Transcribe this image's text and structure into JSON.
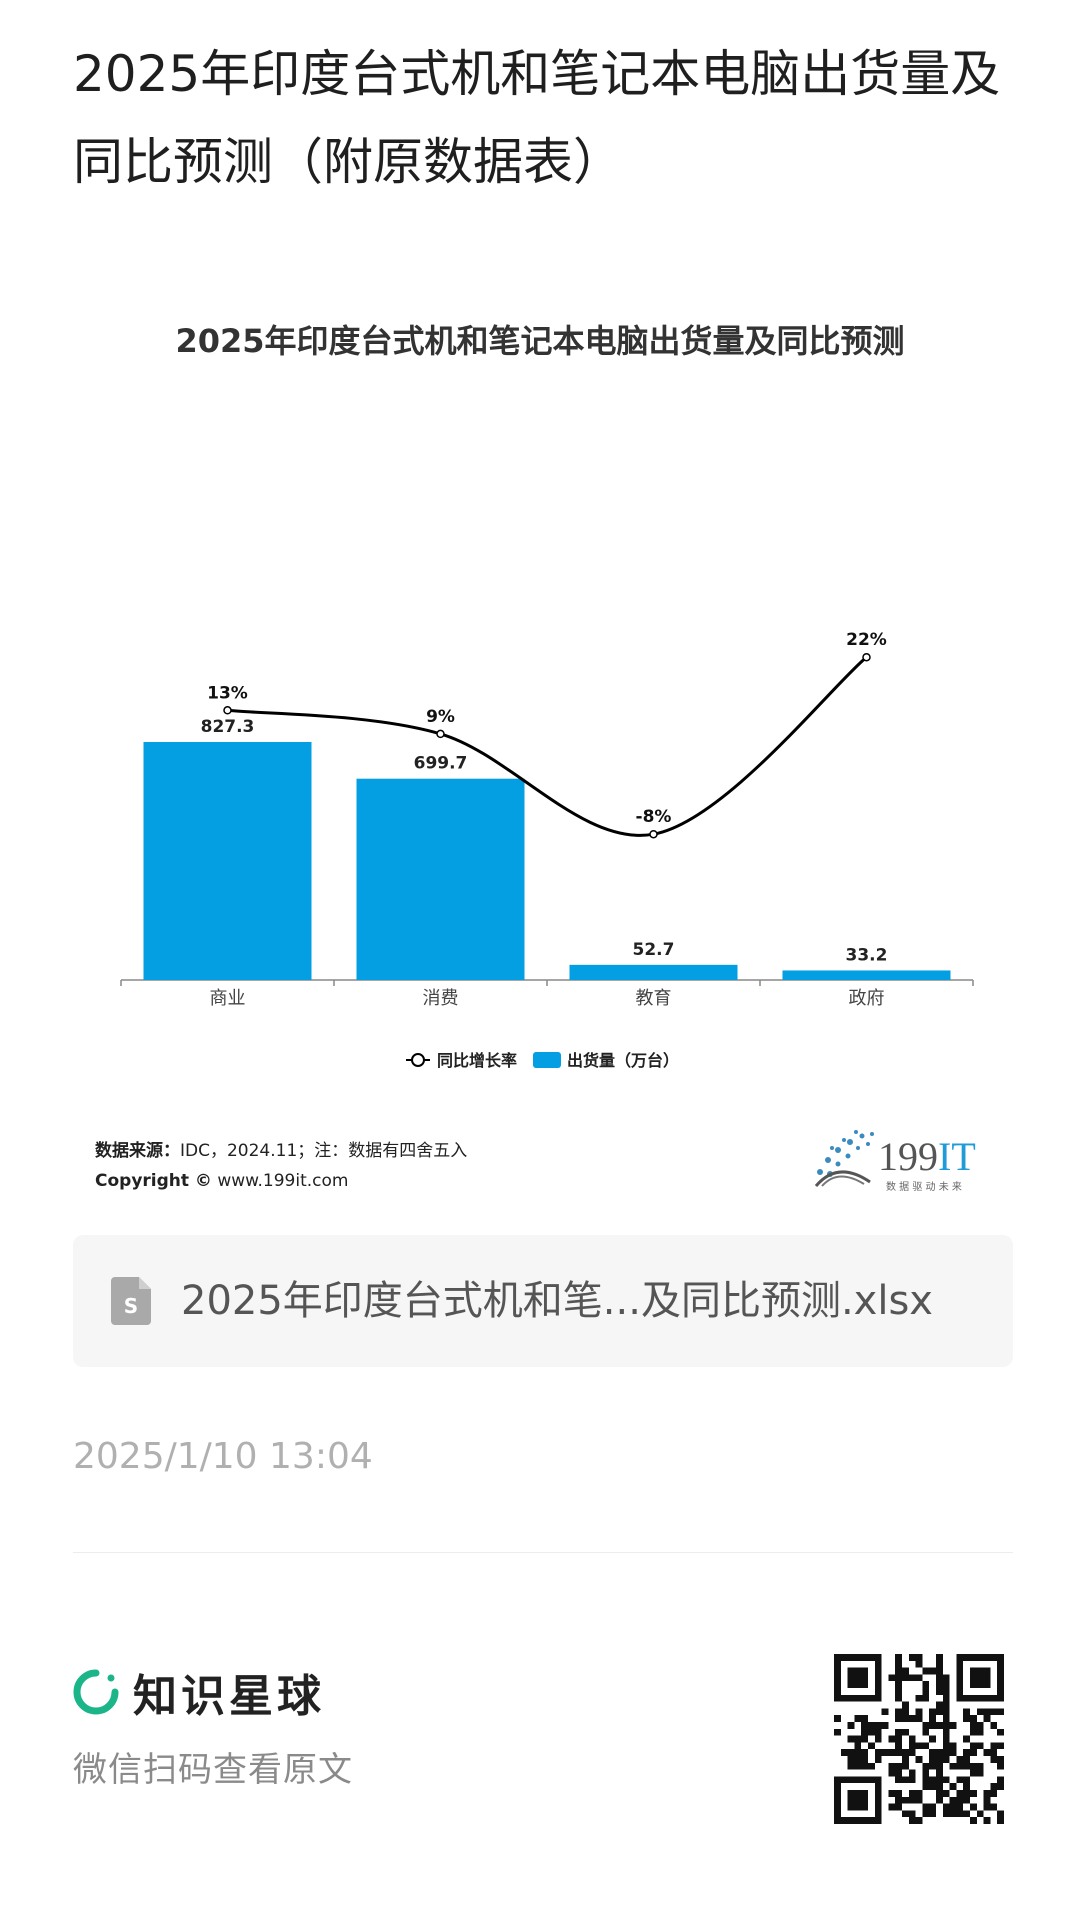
{
  "post": {
    "title": "2025年印度台式机和笔记本电脑出货量及同比预测（附原数据表）",
    "date": "2025/1/10 13:04"
  },
  "chart_data": {
    "type": "bar",
    "title": "2025年印度台式机和笔记本电脑出货量及同比预测",
    "categories": [
      "商业",
      "消费",
      "教育",
      "政府"
    ],
    "series": [
      {
        "name": "出货量（万台）",
        "kind": "bar",
        "values": [
          827.3,
          699.7,
          52.7,
          33.2
        ],
        "labels": [
          "827.3",
          "699.7",
          "52.7",
          "33.2"
        ],
        "color": "#049ee3"
      },
      {
        "name": "同比增长率",
        "kind": "line",
        "values": [
          13,
          9,
          -8,
          22
        ],
        "labels": [
          "13%",
          "9%",
          "-8%",
          "22%"
        ],
        "color": "#000000"
      }
    ],
    "legend_position": "bottom",
    "grid": false
  },
  "source": {
    "label": "数据来源：",
    "text": "IDC，2024.11；注：数据有四舍五入",
    "copyright_label": "Copyright ©",
    "copyright_site": "www.199it.com"
  },
  "brand": {
    "name": "199IT",
    "slogan": "数 据 驱 动 未 来"
  },
  "file": {
    "name": "2025年印度台式机和笔...及同比预测.xlsx",
    "icon": "spreadsheet-file-icon"
  },
  "footer": {
    "app_name": "知识星球",
    "hint": "微信扫码查看原文",
    "accent": "#1cb58a",
    "qr_icon": "qr-code-icon"
  }
}
